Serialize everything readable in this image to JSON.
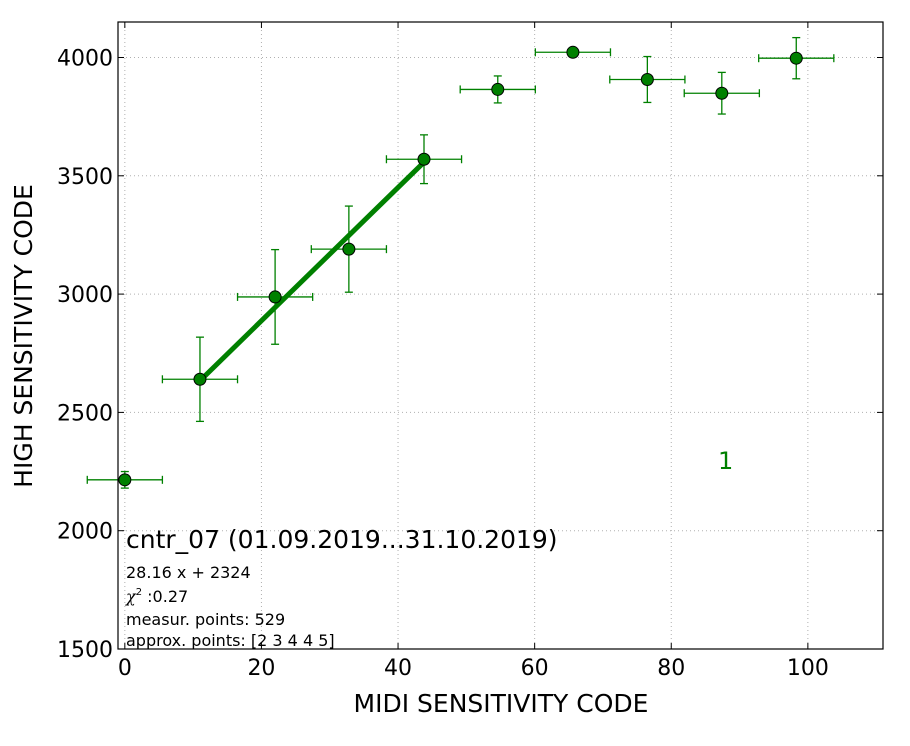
{
  "chart_data": {
    "type": "scatter",
    "title": "",
    "xlabel": "MIDI SENSITIVITY CODE",
    "ylabel": "HIGH SENSITIVITY CODE",
    "xlim": [
      -1,
      111
    ],
    "ylim": [
      1500,
      4150
    ],
    "x_ticks": [
      0,
      20,
      40,
      60,
      80,
      100
    ],
    "y_ticks": [
      1500,
      2000,
      2500,
      3000,
      3500,
      4000
    ],
    "grid": true,
    "color": "#008000",
    "points": [
      {
        "x": 0,
        "y": 2215,
        "xerr": 5.5,
        "yerr": 35
      },
      {
        "x": 11,
        "y": 2640,
        "xerr": 5.5,
        "yerr": 178
      },
      {
        "x": 22,
        "y": 2988,
        "xerr": 5.5,
        "yerr": 200
      },
      {
        "x": 32.8,
        "y": 3190,
        "xerr": 5.5,
        "yerr": 182
      },
      {
        "x": 43.8,
        "y": 3570,
        "xerr": 5.5,
        "yerr": 103
      },
      {
        "x": 54.6,
        "y": 3865,
        "xerr": 5.5,
        "yerr": 57
      },
      {
        "x": 65.6,
        "y": 4022,
        "xerr": 5.5,
        "yerr": 10
      },
      {
        "x": 76.5,
        "y": 3907,
        "xerr": 5.5,
        "yerr": 97
      },
      {
        "x": 87.4,
        "y": 3849,
        "xerr": 5.5,
        "yerr": 88
      },
      {
        "x": 98.3,
        "y": 3997,
        "xerr": 5.5,
        "yerr": 87
      }
    ],
    "fit_line": {
      "x_start": 11,
      "x_end": 43.8,
      "slope": 28.16,
      "intercept": 2324
    },
    "annotations": {
      "title": "cntr_07 (01.09.2019...31.10.2019)",
      "equation": "28.16 x + 2324",
      "chi2_symbol": "χ",
      "chi2_exp": "2",
      "chi2_value": " :0.27",
      "measur": "measur. points: 529",
      "approx": "approx. points: [2 3 4 4 5]",
      "label": "1"
    }
  }
}
